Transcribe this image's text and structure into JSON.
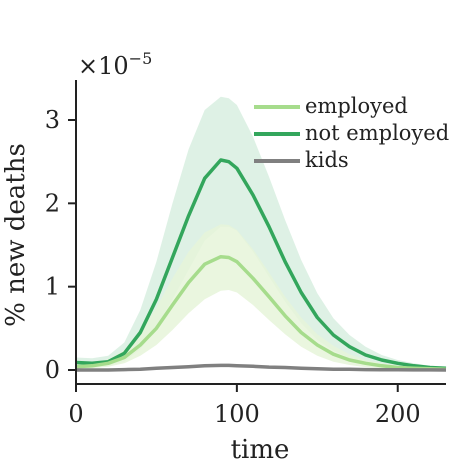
{
  "chart_data": {
    "type": "line",
    "title": "",
    "xlabel": "time",
    "ylabel": "% new deaths",
    "y_scale_factor": "×10",
    "y_scale_exponent": "−5",
    "xlim": [
      0,
      230
    ],
    "ylim": [
      0,
      3.4
    ],
    "x_ticks": [
      0,
      100,
      200
    ],
    "y_ticks": [
      0,
      1,
      2,
      3
    ],
    "x_tick_labels": [
      "0",
      "100",
      "200"
    ],
    "y_tick_labels": [
      "0",
      "1",
      "2",
      "3"
    ],
    "grid": false,
    "legend_position": "top-right",
    "x": [
      0,
      10,
      20,
      30,
      40,
      50,
      60,
      70,
      80,
      90,
      95,
      100,
      110,
      120,
      130,
      140,
      150,
      160,
      170,
      180,
      190,
      200,
      210,
      220,
      230
    ],
    "series": [
      {
        "name": "employed",
        "color": "#a6dc8c",
        "band_color": "#e6f5d9",
        "values": [
          0.04,
          0.05,
          0.08,
          0.15,
          0.3,
          0.5,
          0.78,
          1.05,
          1.27,
          1.36,
          1.35,
          1.3,
          1.1,
          0.88,
          0.65,
          0.45,
          0.3,
          0.19,
          0.12,
          0.08,
          0.05,
          0.03,
          0.02,
          0.015,
          0.01
        ],
        "lower": [
          0.01,
          0.02,
          0.04,
          0.08,
          0.17,
          0.3,
          0.48,
          0.68,
          0.85,
          0.95,
          0.96,
          0.93,
          0.78,
          0.6,
          0.43,
          0.28,
          0.17,
          0.1,
          0.06,
          0.035,
          0.02,
          0.012,
          0.008,
          0.005,
          0.003
        ],
        "upper": [
          0.08,
          0.09,
          0.13,
          0.24,
          0.45,
          0.75,
          1.1,
          1.42,
          1.65,
          1.75,
          1.74,
          1.68,
          1.45,
          1.17,
          0.88,
          0.63,
          0.43,
          0.29,
          0.19,
          0.12,
          0.08,
          0.05,
          0.035,
          0.025,
          0.02
        ]
      },
      {
        "name": "not employed",
        "color": "#33a65c",
        "band_color": "#d8efe0",
        "values": [
          0.09,
          0.08,
          0.1,
          0.2,
          0.45,
          0.85,
          1.35,
          1.85,
          2.3,
          2.52,
          2.5,
          2.42,
          2.1,
          1.72,
          1.3,
          0.93,
          0.63,
          0.42,
          0.28,
          0.18,
          0.12,
          0.08,
          0.05,
          0.03,
          0.02
        ],
        "lower": [
          0.03,
          0.03,
          0.05,
          0.1,
          0.25,
          0.5,
          0.85,
          1.2,
          1.55,
          1.72,
          1.72,
          1.67,
          1.42,
          1.12,
          0.82,
          0.56,
          0.36,
          0.23,
          0.14,
          0.09,
          0.06,
          0.04,
          0.025,
          0.015,
          0.01
        ],
        "upper": [
          0.15,
          0.14,
          0.17,
          0.33,
          0.72,
          1.3,
          2.0,
          2.65,
          3.12,
          3.28,
          3.26,
          3.18,
          2.8,
          2.32,
          1.8,
          1.32,
          0.92,
          0.62,
          0.42,
          0.28,
          0.18,
          0.12,
          0.08,
          0.05,
          0.035
        ]
      },
      {
        "name": "kids",
        "color": "#808080",
        "band_color": "#dddddd",
        "values": [
          0.0,
          0.0,
          0.0,
          0.005,
          0.01,
          0.02,
          0.03,
          0.04,
          0.05,
          0.055,
          0.055,
          0.05,
          0.045,
          0.035,
          0.03,
          0.02,
          0.015,
          0.01,
          0.008,
          0.005,
          0.003,
          0.002,
          0.001,
          0.001,
          0.0
        ],
        "lower": [
          0.0,
          0.0,
          0.0,
          0.0,
          0.005,
          0.01,
          0.02,
          0.03,
          0.04,
          0.045,
          0.045,
          0.04,
          0.035,
          0.028,
          0.022,
          0.015,
          0.01,
          0.007,
          0.005,
          0.003,
          0.002,
          0.001,
          0.0,
          0.0,
          0.0
        ],
        "upper": [
          0.005,
          0.005,
          0.005,
          0.01,
          0.018,
          0.03,
          0.04,
          0.05,
          0.06,
          0.065,
          0.065,
          0.06,
          0.055,
          0.045,
          0.038,
          0.028,
          0.02,
          0.014,
          0.01,
          0.007,
          0.004,
          0.003,
          0.002,
          0.001,
          0.001
        ]
      }
    ]
  }
}
